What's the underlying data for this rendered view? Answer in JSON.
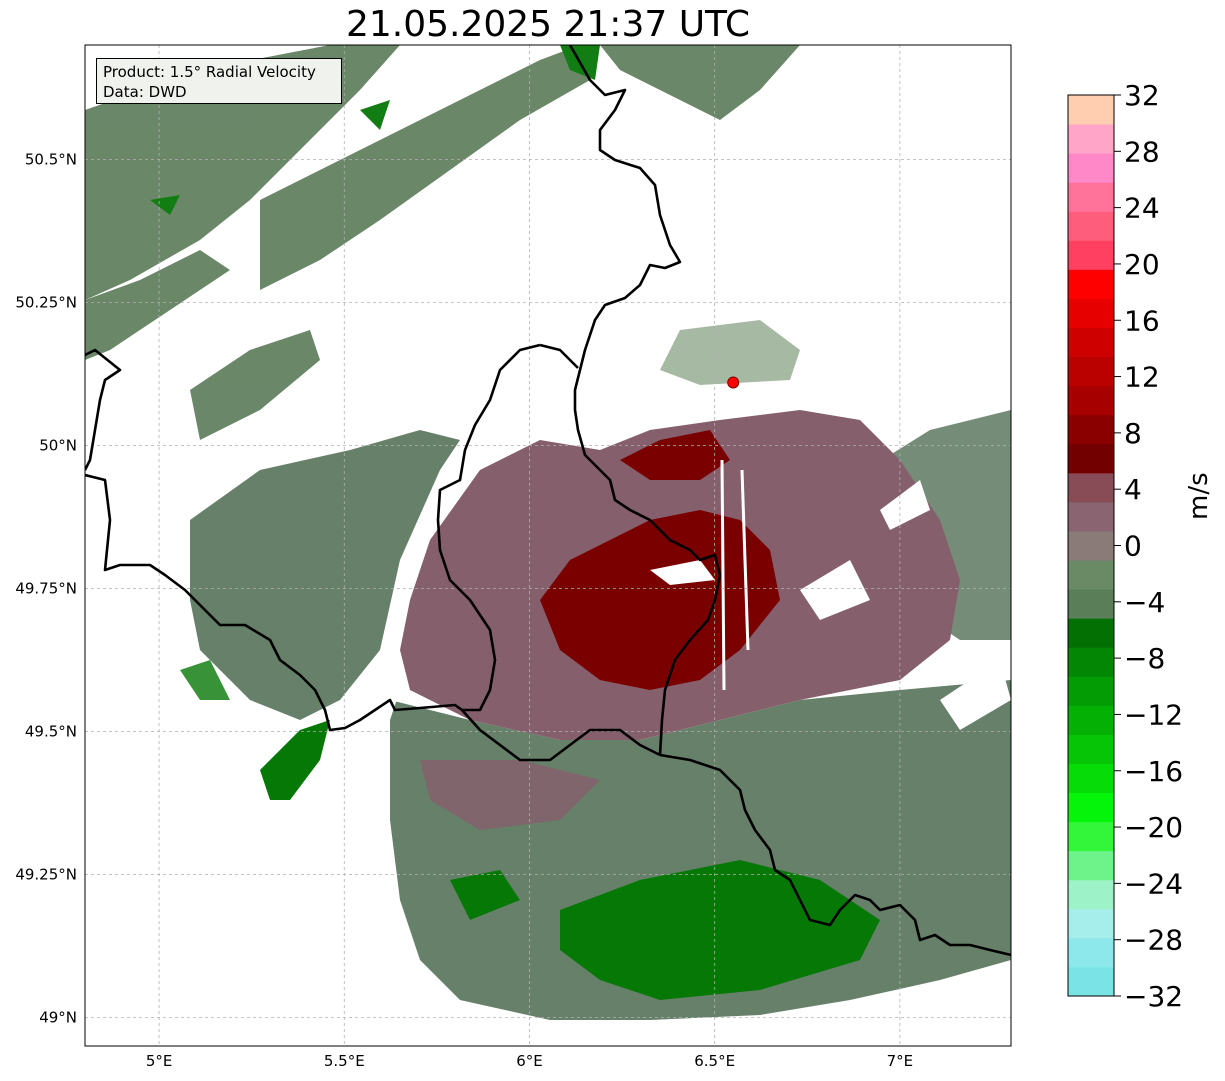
{
  "title": "21.05.2025 21:37 UTC",
  "info": {
    "product": "Product: 1.5° Radial Velocity",
    "data": "Data: DWD"
  },
  "axes": {
    "lon_ticks": [
      {
        "value": 5.0,
        "label": "5°E"
      },
      {
        "value": 5.5,
        "label": "5.5°E"
      },
      {
        "value": 6.0,
        "label": "6°E"
      },
      {
        "value": 6.5,
        "label": "6.5°E"
      },
      {
        "value": 7.0,
        "label": "7°E"
      }
    ],
    "lat_ticks": [
      {
        "value": 50.5,
        "label": "50.5°N"
      },
      {
        "value": 50.25,
        "label": "50.25°N"
      },
      {
        "value": 50.0,
        "label": "50°N"
      },
      {
        "value": 49.75,
        "label": "49.75°N"
      },
      {
        "value": 49.5,
        "label": "49.5°N"
      },
      {
        "value": 49.25,
        "label": "49.25°N"
      },
      {
        "value": 49.0,
        "label": "49°N"
      }
    ],
    "lon_range": [
      4.8,
      7.3
    ],
    "lat_range": [
      48.95,
      50.7
    ],
    "grid": true
  },
  "radar_site": {
    "lon": 6.55,
    "lat": 50.11,
    "color": "#ff0000"
  },
  "colorbar": {
    "unit": "m/s",
    "range": [
      -32,
      32
    ],
    "ticks": [
      {
        "value": 32,
        "label": "32"
      },
      {
        "value": 28,
        "label": "28"
      },
      {
        "value": 24,
        "label": "24"
      },
      {
        "value": 20,
        "label": "20"
      },
      {
        "value": 16,
        "label": "16"
      },
      {
        "value": 12,
        "label": "12"
      },
      {
        "value": 8,
        "label": "8"
      },
      {
        "value": 4,
        "label": "4"
      },
      {
        "value": 0,
        "label": "0"
      },
      {
        "value": -4,
        "label": "−4"
      },
      {
        "value": -8,
        "label": "−8"
      },
      {
        "value": -12,
        "label": "−12"
      },
      {
        "value": -16,
        "label": "−16"
      },
      {
        "value": -20,
        "label": "−20"
      },
      {
        "value": -24,
        "label": "−24"
      },
      {
        "value": -28,
        "label": "−28"
      },
      {
        "value": -32,
        "label": "−32"
      }
    ],
    "colors": [
      "#79e3e6",
      "#8ce8ea",
      "#a6eeec",
      "#9ef2c8",
      "#6ef38a",
      "#33f53a",
      "#05f50a",
      "#06dc07",
      "#05c506",
      "#05b005",
      "#049c05",
      "#038604",
      "#037003",
      "#5a7e58",
      "#6a8a66",
      "#8a7a78",
      "#8a6470",
      "#874c56",
      "#720000",
      "#8a0000",
      "#a60000",
      "#bb0000",
      "#cf0000",
      "#e60000",
      "#ff0000",
      "#ff4060",
      "#ff5d7c",
      "#ff739a",
      "#ff88c8",
      "#ffa6c8",
      "#ffcdb0"
    ]
  }
}
